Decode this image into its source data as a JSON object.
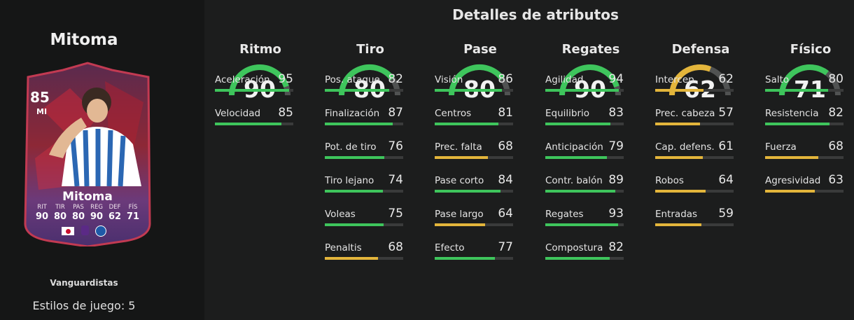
{
  "player": {
    "name_top": "Mitoma",
    "card": {
      "rating": "85",
      "position": "MI",
      "name": "Mitoma",
      "stat_labels": [
        "RIT",
        "TIR",
        "PAS",
        "REG",
        "DEF",
        "FÍS"
      ],
      "stat_values": [
        "90",
        "80",
        "80",
        "90",
        "62",
        "71"
      ]
    },
    "promo": "Vanguardistas",
    "playstyles": "Estilos de juego: 5"
  },
  "section_title": "Detalles de atributos",
  "colors": {
    "green": "#3ec55c",
    "yellow": "#e3b53b",
    "track": "#3a3b3b",
    "gauge_bg": "#505252"
  },
  "categories": [
    {
      "name": "Ritmo",
      "value": "90",
      "level": 90,
      "color": "green",
      "attrs": [
        {
          "name": "Aceleración",
          "value": "95",
          "level": 95,
          "color": "green"
        },
        {
          "name": "Velocidad",
          "value": "85",
          "level": 85,
          "color": "green"
        }
      ]
    },
    {
      "name": "Tiro",
      "value": "80",
      "level": 80,
      "color": "green",
      "attrs": [
        {
          "name": "Pos. ataque",
          "value": "82",
          "level": 82,
          "color": "green"
        },
        {
          "name": "Finalización",
          "value": "87",
          "level": 87,
          "color": "green"
        },
        {
          "name": "Pot. de tiro",
          "value": "76",
          "level": 76,
          "color": "green"
        },
        {
          "name": "Tiro lejano",
          "value": "74",
          "level": 74,
          "color": "green"
        },
        {
          "name": "Voleas",
          "value": "75",
          "level": 75,
          "color": "green"
        },
        {
          "name": "Penaltis",
          "value": "68",
          "level": 68,
          "color": "yellow"
        }
      ]
    },
    {
      "name": "Pase",
      "value": "80",
      "level": 80,
      "color": "green",
      "attrs": [
        {
          "name": "Visión",
          "value": "86",
          "level": 86,
          "color": "green"
        },
        {
          "name": "Centros",
          "value": "81",
          "level": 81,
          "color": "green"
        },
        {
          "name": "Prec. falta",
          "value": "68",
          "level": 68,
          "color": "yellow"
        },
        {
          "name": "Pase corto",
          "value": "84",
          "level": 84,
          "color": "green"
        },
        {
          "name": "Pase largo",
          "value": "64",
          "level": 64,
          "color": "yellow"
        },
        {
          "name": "Efecto",
          "value": "77",
          "level": 77,
          "color": "green"
        }
      ]
    },
    {
      "name": "Regates",
      "value": "90",
      "level": 90,
      "color": "green",
      "attrs": [
        {
          "name": "Agilidad",
          "value": "94",
          "level": 94,
          "color": "green"
        },
        {
          "name": "Equilibrio",
          "value": "83",
          "level": 83,
          "color": "green"
        },
        {
          "name": "Anticipación",
          "value": "79",
          "level": 79,
          "color": "green"
        },
        {
          "name": "Contr. balón",
          "value": "89",
          "level": 89,
          "color": "green"
        },
        {
          "name": "Regates",
          "value": "93",
          "level": 93,
          "color": "green"
        },
        {
          "name": "Compostura",
          "value": "82",
          "level": 82,
          "color": "green"
        }
      ]
    },
    {
      "name": "Defensa",
      "value": "62",
      "level": 62,
      "color": "yellow",
      "attrs": [
        {
          "name": "Intercep.",
          "value": "62",
          "level": 62,
          "color": "yellow"
        },
        {
          "name": "Prec. cabeza",
          "value": "57",
          "level": 57,
          "color": "yellow"
        },
        {
          "name": "Cap. defens.",
          "value": "61",
          "level": 61,
          "color": "yellow"
        },
        {
          "name": "Robos",
          "value": "64",
          "level": 64,
          "color": "yellow"
        },
        {
          "name": "Entradas",
          "value": "59",
          "level": 59,
          "color": "yellow"
        }
      ]
    },
    {
      "name": "Físico",
      "value": "71",
      "level": 71,
      "color": "green",
      "attrs": [
        {
          "name": "Salto",
          "value": "80",
          "level": 80,
          "color": "green"
        },
        {
          "name": "Resistencia",
          "value": "82",
          "level": 82,
          "color": "green"
        },
        {
          "name": "Fuerza",
          "value": "68",
          "level": 68,
          "color": "yellow"
        },
        {
          "name": "Agresividad",
          "value": "63",
          "level": 63,
          "color": "yellow"
        }
      ]
    }
  ]
}
